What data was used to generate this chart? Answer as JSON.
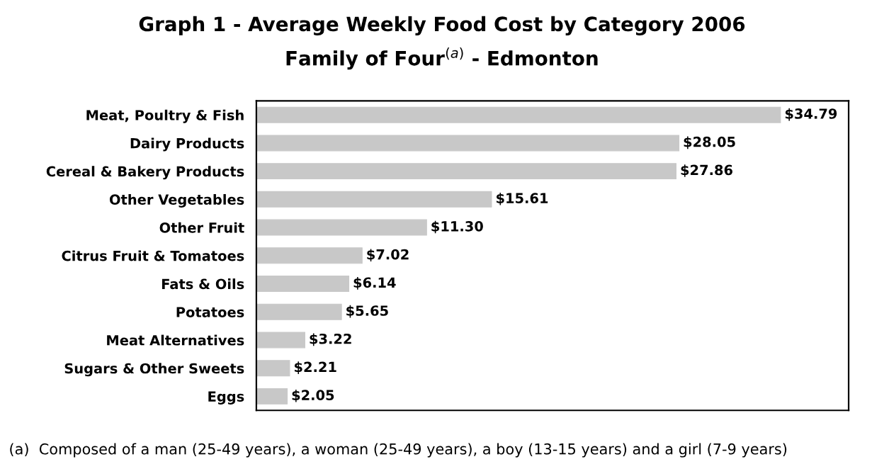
{
  "chart_data": {
    "type": "bar",
    "orientation": "horizontal",
    "title": "Graph 1 - Average Weekly Food Cost by Category 2006",
    "subtitle": "Family of Four$^{(a)}$ - Edmonton",
    "categories": [
      "Meat, Poultry & Fish",
      "Dairy Products",
      "Cereal & Bakery Products",
      "Other Vegetables",
      "Other Fruit",
      "Citrus Fruit & Tomatoes",
      "Fats & Oils",
      "Potatoes",
      "Meat Alternatives",
      "Sugars & Other Sweets",
      "Eggs"
    ],
    "values": [
      34.79,
      28.05,
      27.86,
      15.61,
      11.3,
      7.02,
      6.14,
      5.65,
      3.22,
      2.21,
      2.05
    ],
    "value_labels": [
      "$34.79",
      "$28.05",
      "$27.86",
      "$15.61",
      "$11.30",
      "$7.02",
      "$6.14",
      "$5.65",
      "$3.22",
      "$2.21",
      "$2.05"
    ],
    "color": "#c8c8c8",
    "tick_labels": "y",
    "grid": false,
    "legend": false,
    "annotations": [
      "(a)  Composed of a man (25-49 years), a woman (25-49 years), a boy (13-15 years) and a girl (7-9 years)"
    ]
  }
}
